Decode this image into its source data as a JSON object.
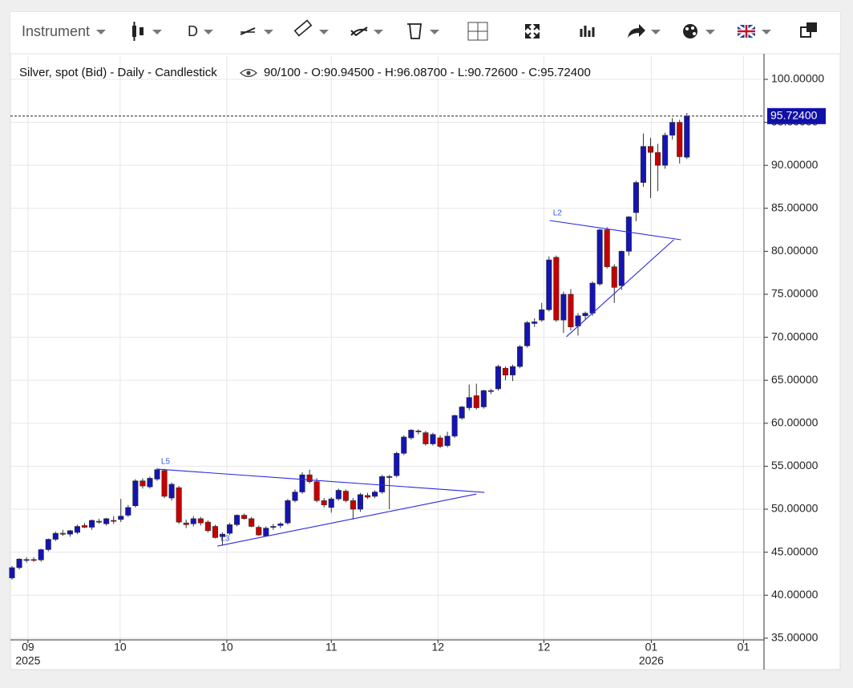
{
  "toolbar": {
    "instrument": "Instrument",
    "period": "D"
  },
  "chart_data": {
    "type": "candlestick",
    "info_title": "Silver, spot (Bid) - Daily - Candlestick",
    "info_values": "90/100 - O:90.94500 - H:96.08700 - L:90.72600 - C:95.72400",
    "up_color": "#1414b4",
    "down_color": "#c40000",
    "grid": true,
    "last_price": {
      "value": 95.724,
      "label": "95.72400"
    },
    "xlim": [
      -0.22,
      103.3
    ],
    "xticks": [
      {
        "value": 2.2,
        "label": "09"
      },
      {
        "value": 14.9,
        "label": "10"
      },
      {
        "value": 29.6,
        "label": "10"
      },
      {
        "value": 44,
        "label": "11"
      },
      {
        "value": 58.7,
        "label": "12"
      },
      {
        "value": 73.3,
        "label": "12"
      },
      {
        "value": 88.1,
        "label": "01"
      },
      {
        "value": 100.8,
        "label": "01"
      }
    ],
    "year_labels": [
      {
        "value": 2.2,
        "label": "2025"
      },
      {
        "value": 88.1,
        "label": "2026"
      }
    ],
    "ylim": [
      34.8,
      102.7
    ],
    "yticks": [
      {
        "value": 35,
        "label": "35.00000"
      },
      {
        "value": 40,
        "label": "40.00000"
      },
      {
        "value": 45,
        "label": "45.00000"
      },
      {
        "value": 50,
        "label": "50.00000"
      },
      {
        "value": 55,
        "label": "55.00000"
      },
      {
        "value": 60,
        "label": "60.00000"
      },
      {
        "value": 65,
        "label": "65.00000"
      },
      {
        "value": 70,
        "label": "70.00000"
      },
      {
        "value": 75,
        "label": "75.00000"
      },
      {
        "value": 80,
        "label": "80.00000"
      },
      {
        "value": 85,
        "label": "85.00000"
      },
      {
        "value": 90,
        "label": "90.00000"
      },
      {
        "value": 95,
        "label": "95.00000"
      },
      {
        "value": 100,
        "label": "100.00000"
      }
    ],
    "drawings": [
      {
        "label": "L5",
        "x": [
          20.1,
          65.1
        ],
        "y": [
          54.66,
          51.96
        ]
      },
      {
        "label": "L3",
        "x": [
          28.3,
          64
        ],
        "y": [
          45.71,
          51.77
        ]
      },
      {
        "label": "L2",
        "x": [
          74.1,
          92.2
        ],
        "y": [
          83.58,
          81.34
        ]
      },
      {
        "x": [
          76.4,
          91.2
        ],
        "y": [
          70.06,
          81.34
        ]
      }
    ],
    "candles": [
      [
        42,
        43.4,
        41.8,
        43.2
      ],
      [
        43.2,
        44.3,
        43,
        44.2
      ],
      [
        44.1,
        44.4,
        43.8,
        44.15
      ],
      [
        44.15,
        44.4,
        43.9,
        44.1
      ],
      [
        44.1,
        45.4,
        43.9,
        45.3
      ],
      [
        45.3,
        46.6,
        45.1,
        46.5
      ],
      [
        46.5,
        47.4,
        46.3,
        47.2
      ],
      [
        47.2,
        47.6,
        46.9,
        47.1
      ],
      [
        47.1,
        47.6,
        46.8,
        47.5
      ],
      [
        47.3,
        48.2,
        47.1,
        48
      ],
      [
        48.1,
        48.4,
        47.8,
        47.9
      ],
      [
        47.9,
        48.8,
        47.6,
        48.7
      ],
      [
        48.6,
        48.9,
        48.3,
        48.5
      ],
      [
        48.3,
        49,
        48.1,
        48.9
      ],
      [
        48.7,
        49.2,
        48.3,
        48.6
      ],
      [
        48.8,
        51.2,
        48.5,
        49.2
      ],
      [
        49.3,
        50.5,
        49.1,
        50.2
      ],
      [
        50.4,
        53.5,
        50.2,
        53.3
      ],
      [
        53.3,
        53.6,
        52.4,
        52.7
      ],
      [
        52.6,
        53.8,
        52.4,
        53.6
      ],
      [
        53.5,
        54.8,
        53.3,
        54.6
      ],
      [
        54.5,
        54.7,
        51.3,
        51.5
      ],
      [
        51.3,
        53.1,
        51,
        52.9
      ],
      [
        52.5,
        52.7,
        48.3,
        48.5
      ],
      [
        48.4,
        48.8,
        47.8,
        48.2
      ],
      [
        48.3,
        49.2,
        48,
        48.9
      ],
      [
        48.9,
        49.1,
        48.1,
        48.4
      ],
      [
        48.5,
        48.7,
        47.3,
        47.5
      ],
      [
        48,
        48.2,
        46.6,
        46.7
      ],
      [
        46.8,
        47.3,
        45.8,
        47.1
      ],
      [
        47.2,
        48.4,
        47,
        48.2
      ],
      [
        48.2,
        49.4,
        48,
        49.3
      ],
      [
        49.3,
        49.5,
        48.8,
        48.9
      ],
      [
        48.9,
        49.1,
        47.9,
        48
      ],
      [
        47.9,
        48.1,
        46.9,
        47
      ],
      [
        46.9,
        48,
        46.8,
        47.8
      ],
      [
        47.9,
        48.3,
        47.6,
        48
      ],
      [
        48.1,
        48.5,
        47.8,
        48.3
      ],
      [
        48.4,
        51.2,
        48.2,
        51
      ],
      [
        51,
        52.3,
        50.8,
        52
      ],
      [
        52,
        54.3,
        51.8,
        54
      ],
      [
        54,
        54.6,
        53,
        53.2
      ],
      [
        53.2,
        53.6,
        50.8,
        51
      ],
      [
        51,
        51.3,
        50.2,
        50.5
      ],
      [
        50.2,
        51.4,
        49.6,
        51.2
      ],
      [
        51.2,
        52.4,
        51,
        52.2
      ],
      [
        52.1,
        52.3,
        50.8,
        51
      ],
      [
        51,
        51.3,
        48.8,
        50
      ],
      [
        50,
        51.9,
        49.7,
        51.7
      ],
      [
        51.6,
        51.9,
        51.2,
        51.4
      ],
      [
        51.5,
        52.2,
        51.3,
        52
      ],
      [
        52,
        54,
        51.8,
        53.8
      ],
      [
        53.7,
        54,
        50,
        53.8
      ],
      [
        53.9,
        56.7,
        53.7,
        56.5
      ],
      [
        56.5,
        58.6,
        56.3,
        58.4
      ],
      [
        58.3,
        59.3,
        58.1,
        59.2
      ],
      [
        59.1,
        59.3,
        58.7,
        59
      ],
      [
        58.9,
        59.1,
        57.4,
        57.6
      ],
      [
        57.6,
        58.9,
        57.4,
        58.7
      ],
      [
        58.3,
        58.6,
        57.1,
        57.3
      ],
      [
        57.4,
        59,
        57.2,
        58.5
      ],
      [
        58.5,
        61,
        58.3,
        60.9
      ],
      [
        60.6,
        62,
        60.4,
        61.9
      ],
      [
        61.8,
        64.5,
        61.5,
        63
      ],
      [
        63.2,
        64.6,
        61.6,
        61.8
      ],
      [
        61.9,
        63.9,
        61.7,
        63.8
      ],
      [
        63.7,
        64,
        63.4,
        63.8
      ],
      [
        64,
        66.8,
        63.8,
        66.6
      ],
      [
        66.4,
        66.6,
        65,
        65.6
      ],
      [
        65.6,
        66.8,
        64.9,
        66.6
      ],
      [
        66.6,
        69.1,
        66.4,
        68.9
      ],
      [
        69,
        71.9,
        68.8,
        71.7
      ],
      [
        71.6,
        72.2,
        71.2,
        71.8
      ],
      [
        72,
        74,
        71.8,
        73.2
      ],
      [
        73.2,
        79.4,
        73,
        79
      ],
      [
        79.3,
        79.5,
        71.8,
        72
      ],
      [
        72,
        75.3,
        70.5,
        75
      ],
      [
        75,
        75.6,
        70.8,
        71.2
      ],
      [
        71.3,
        72.8,
        70.2,
        72.5
      ],
      [
        72.5,
        73,
        72.1,
        72.8
      ],
      [
        72.8,
        76.5,
        72.5,
        76.3
      ],
      [
        76.2,
        82.6,
        76,
        82.5
      ],
      [
        82.5,
        82.8,
        78,
        78.2
      ],
      [
        78.2,
        78.5,
        74,
        75.8
      ],
      [
        76,
        80.1,
        75.5,
        80
      ],
      [
        80,
        84.1,
        79.5,
        84
      ],
      [
        84.5,
        88.2,
        83.5,
        88
      ],
      [
        88,
        93.7,
        87.5,
        92.2
      ],
      [
        92.2,
        93.2,
        86.2,
        91.5
      ],
      [
        91.5,
        92.5,
        87,
        90
      ],
      [
        90,
        93.8,
        89.6,
        93.5
      ],
      [
        93.5,
        95.5,
        93,
        95
      ],
      [
        95,
        95.3,
        90.2,
        91
      ],
      [
        90.945,
        96.087,
        90.726,
        95.724
      ]
    ]
  }
}
